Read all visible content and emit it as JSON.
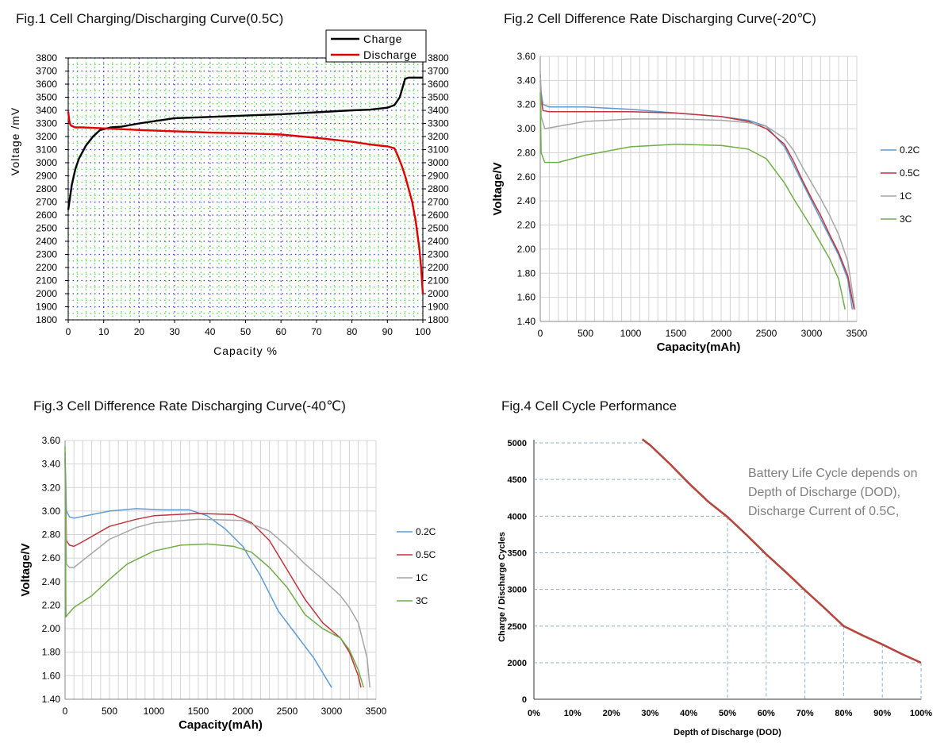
{
  "chart_data": [
    {
      "type": "line",
      "title": "Fig.1 Cell Charging/Discharging Curve(0.5C)",
      "xlabel": "Capacity  %",
      "ylabel": "Voltage /mV",
      "xlim": [
        0,
        100
      ],
      "ylim": [
        1800,
        3800
      ],
      "x_ticks": [
        "0",
        "10",
        "20",
        "30",
        "40",
        "50",
        "60",
        "70",
        "80",
        "90",
        "100"
      ],
      "y_ticks": [
        "1800",
        "1900",
        "2000",
        "2100",
        "2200",
        "2300",
        "2400",
        "2500",
        "2600",
        "2700",
        "2800",
        "2900",
        "3000",
        "3100",
        "3200",
        "3300",
        "3400",
        "3500",
        "3600",
        "3700",
        "3800"
      ],
      "grid": true,
      "legend_position": "top-right",
      "series": [
        {
          "name": "Charge",
          "color": "#000000",
          "x": [
            0,
            1,
            2,
            3,
            5,
            7,
            9,
            12,
            15,
            20,
            25,
            30,
            40,
            50,
            60,
            70,
            80,
            85,
            90,
            92,
            93.5,
            95,
            96,
            97,
            98,
            100
          ],
          "y": [
            2640,
            2830,
            2950,
            3030,
            3130,
            3200,
            3250,
            3270,
            3275,
            3300,
            3320,
            3340,
            3350,
            3360,
            3370,
            3385,
            3400,
            3405,
            3420,
            3440,
            3500,
            3640,
            3650,
            3650,
            3650,
            3650
          ]
        },
        {
          "name": "Discharge",
          "color": "#e00000",
          "x": [
            0,
            0.3,
            0.6,
            1,
            2,
            4,
            8,
            12,
            20,
            30,
            40,
            50,
            60,
            70,
            80,
            85,
            88,
            90,
            92,
            93,
            94,
            95,
            96,
            97,
            98,
            99,
            99.5,
            100
          ],
          "y": [
            3390,
            3320,
            3290,
            3280,
            3270,
            3270,
            3265,
            3260,
            3250,
            3240,
            3230,
            3225,
            3215,
            3190,
            3160,
            3140,
            3130,
            3125,
            3110,
            3050,
            2980,
            2900,
            2800,
            2700,
            2550,
            2350,
            2200,
            2000
          ]
        }
      ]
    },
    {
      "type": "line",
      "title": "Fig.2 Cell Difference Rate Discharging Curve(-20℃)",
      "xlabel": "Capacity(mAh)",
      "ylabel": "Voltage/V",
      "xlim": [
        0,
        3500
      ],
      "ylim": [
        1.4,
        3.6
      ],
      "x_ticks": [
        "0",
        "500",
        "1000",
        "1500",
        "2000",
        "2500",
        "3000",
        "3500"
      ],
      "y_ticks": [
        "1.40",
        "1.60",
        "1.80",
        "2.00",
        "2.20",
        "2.40",
        "2.60",
        "2.80",
        "3.00",
        "3.20",
        "3.40",
        "3.60"
      ],
      "grid": true,
      "legend_position": "right",
      "series": [
        {
          "name": "0.2C",
          "color": "#5b9bd5",
          "x": [
            0,
            10,
            30,
            100,
            500,
            1000,
            1500,
            2000,
            2300,
            2500,
            2700,
            2800,
            2900,
            3000,
            3100,
            3200,
            3300,
            3400,
            3450
          ],
          "y": [
            3.45,
            3.3,
            3.2,
            3.18,
            3.18,
            3.16,
            3.13,
            3.1,
            3.07,
            3.02,
            2.85,
            2.7,
            2.55,
            2.4,
            2.25,
            2.1,
            1.95,
            1.75,
            1.5
          ]
        },
        {
          "name": "0.5C",
          "color": "#c0343c",
          "x": [
            0,
            10,
            30,
            100,
            500,
            1000,
            1500,
            2000,
            2300,
            2500,
            2700,
            2800,
            2900,
            3000,
            3100,
            3200,
            3300,
            3400,
            3470
          ],
          "y": [
            3.4,
            3.25,
            3.15,
            3.14,
            3.14,
            3.14,
            3.13,
            3.1,
            3.06,
            3.0,
            2.87,
            2.73,
            2.57,
            2.42,
            2.28,
            2.12,
            1.97,
            1.78,
            1.5
          ]
        },
        {
          "name": "1C",
          "color": "#a5a5a5",
          "x": [
            0,
            10,
            50,
            200,
            500,
            1000,
            1500,
            2000,
            2300,
            2500,
            2700,
            2800,
            2900,
            3000,
            3100,
            3200,
            3300,
            3400,
            3480
          ],
          "y": [
            3.48,
            3.1,
            3.0,
            3.02,
            3.06,
            3.08,
            3.08,
            3.07,
            3.05,
            3.02,
            2.92,
            2.82,
            2.68,
            2.55,
            2.42,
            2.28,
            2.12,
            1.9,
            1.5
          ]
        },
        {
          "name": "3C",
          "color": "#70ad47",
          "x": [
            0,
            10,
            50,
            200,
            500,
            1000,
            1500,
            2000,
            2300,
            2500,
            2700,
            2800,
            2900,
            3000,
            3100,
            3200,
            3300,
            3370
          ],
          "y": [
            3.3,
            2.8,
            2.72,
            2.72,
            2.78,
            2.85,
            2.87,
            2.86,
            2.83,
            2.75,
            2.55,
            2.42,
            2.3,
            2.18,
            2.05,
            1.92,
            1.75,
            1.5
          ]
        }
      ]
    },
    {
      "type": "line",
      "title": "Fig.3 Cell Difference Rate Discharging Curve(-40℃)",
      "xlabel": "Capacity(mAh)",
      "ylabel": "Voltage/V",
      "xlim": [
        0,
        3500
      ],
      "ylim": [
        1.4,
        3.6
      ],
      "x_ticks": [
        "0",
        "500",
        "1000",
        "1500",
        "2000",
        "2500",
        "3000",
        "3500"
      ],
      "y_ticks": [
        "1.40",
        "1.60",
        "1.80",
        "2.00",
        "2.20",
        "2.40",
        "2.60",
        "2.80",
        "3.00",
        "3.20",
        "3.40",
        "3.60"
      ],
      "grid": true,
      "legend_position": "right",
      "series": [
        {
          "name": "0.2C",
          "color": "#5b9bd5",
          "x": [
            0,
            15,
            50,
            100,
            300,
            500,
            800,
            1100,
            1400,
            1600,
            1800,
            2000,
            2200,
            2400,
            2600,
            2800,
            3000
          ],
          "y": [
            3.5,
            3.0,
            2.95,
            2.94,
            2.97,
            3.0,
            3.02,
            3.01,
            3.01,
            2.96,
            2.85,
            2.7,
            2.45,
            2.15,
            1.95,
            1.75,
            1.5
          ]
        },
        {
          "name": "0.5C",
          "color": "#c0343c",
          "x": [
            0,
            15,
            50,
            100,
            200,
            500,
            800,
            1000,
            1500,
            1900,
            2100,
            2300,
            2500,
            2700,
            2900,
            3100,
            3200,
            3300,
            3330
          ],
          "y": [
            3.45,
            2.75,
            2.71,
            2.7,
            2.74,
            2.87,
            2.93,
            2.96,
            2.98,
            2.97,
            2.9,
            2.75,
            2.5,
            2.25,
            2.05,
            1.92,
            1.8,
            1.6,
            1.5
          ]
        },
        {
          "name": "1C",
          "color": "#a5a5a5",
          "x": [
            0,
            15,
            50,
            100,
            200,
            500,
            800,
            1000,
            1500,
            2000,
            2300,
            2500,
            2700,
            2900,
            3100,
            3200,
            3300,
            3400,
            3430
          ],
          "y": [
            3.45,
            2.55,
            2.52,
            2.52,
            2.58,
            2.76,
            2.86,
            2.9,
            2.93,
            2.92,
            2.83,
            2.7,
            2.55,
            2.42,
            2.28,
            2.18,
            2.05,
            1.75,
            1.5
          ]
        },
        {
          "name": "3C",
          "color": "#70ad47",
          "x": [
            0,
            10,
            30,
            100,
            300,
            500,
            700,
            1000,
            1300,
            1600,
            1900,
            2100,
            2300,
            2500,
            2700,
            2900,
            3100,
            3200,
            3300,
            3360
          ],
          "y": [
            3.55,
            2.1,
            2.12,
            2.18,
            2.28,
            2.42,
            2.55,
            2.66,
            2.71,
            2.72,
            2.7,
            2.65,
            2.52,
            2.35,
            2.12,
            2.0,
            1.92,
            1.82,
            1.65,
            1.5
          ]
        }
      ]
    },
    {
      "type": "line",
      "title": "Fig.4 Cell Cycle Performance",
      "xlabel": "Depth of Discharge (DOD)",
      "ylabel": "Charge / Discharge Cycles",
      "xlim": [
        0,
        100
      ],
      "ylim": [
        0,
        5000
      ],
      "x_ticks": [
        "0%",
        "10%",
        "20%",
        "30%",
        "40%",
        "50%",
        "60%",
        "70%",
        "80%",
        "90%",
        "100%"
      ],
      "y_ticks": [
        "0",
        "2000",
        "2500",
        "3000",
        "3500",
        "4000",
        "4500",
        "5000"
      ],
      "grid": false,
      "annotation": [
        "Battery Life Cycle depends on",
        "Depth of Discharge (DOD),",
        "Discharge Current of 0.5C,"
      ],
      "series": [
        {
          "name": "",
          "color": "#b5473f",
          "x": [
            28,
            30,
            35,
            40,
            45,
            50,
            55,
            60,
            65,
            70,
            75,
            80,
            85,
            90,
            95,
            100
          ],
          "y": [
            5050,
            4970,
            4720,
            4450,
            4200,
            3990,
            3740,
            3480,
            3240,
            2990,
            2750,
            2500,
            2370,
            2250,
            2120,
            2000
          ]
        }
      ]
    }
  ]
}
